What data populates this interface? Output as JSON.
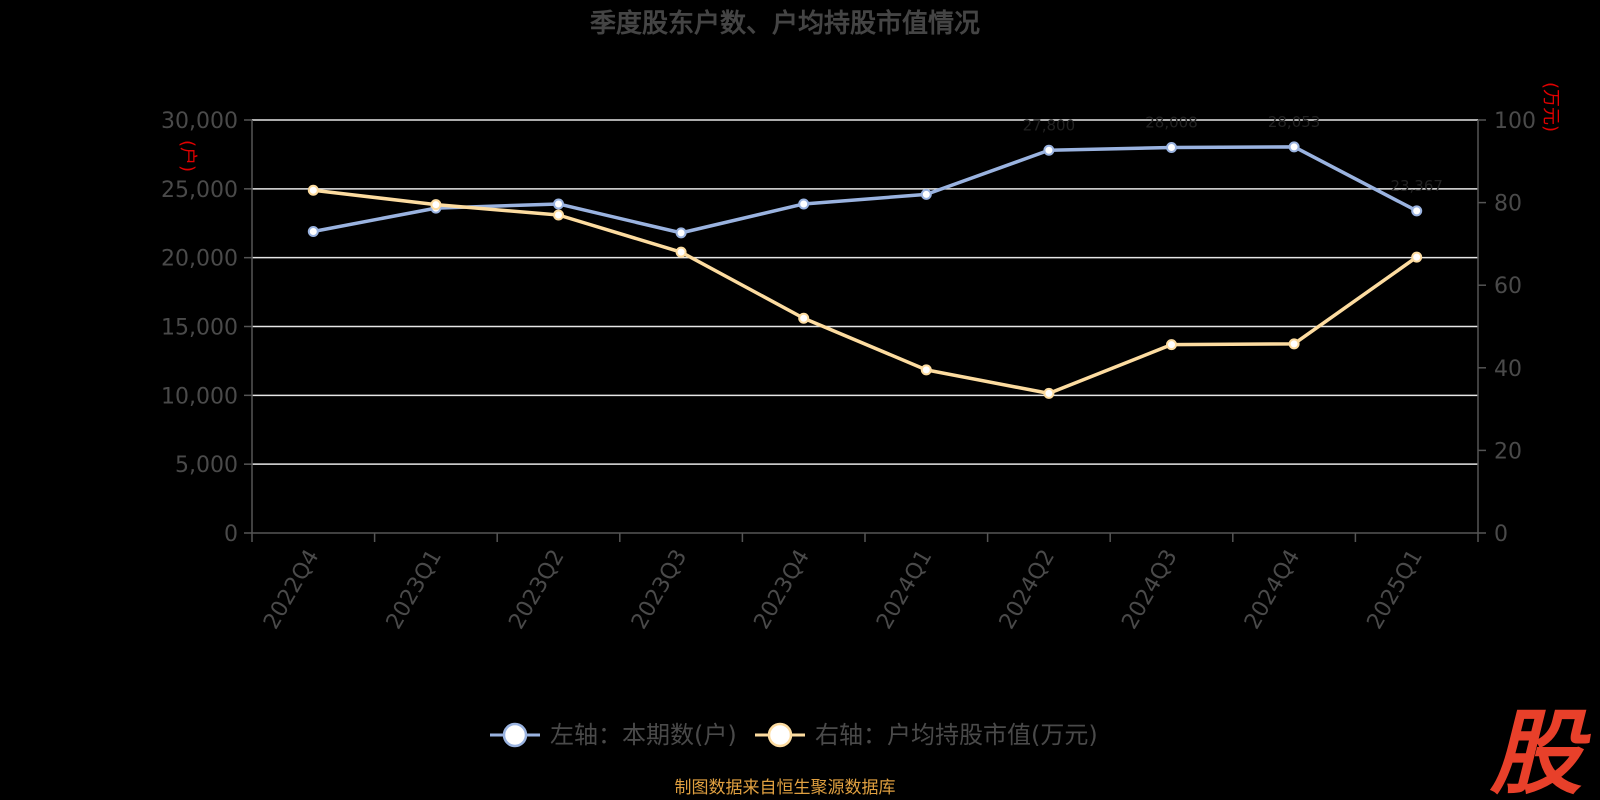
{
  "chart_data": {
    "type": "line",
    "title": "季度股东户数、户均持股市值情况",
    "categories": [
      "2022Q4",
      "2023Q1",
      "2023Q2",
      "2023Q3",
      "2023Q4",
      "2024Q1",
      "2024Q2",
      "2024Q3",
      "2024Q4",
      "2025Q1"
    ],
    "left_axis": {
      "unit": "(户)",
      "min": 0,
      "max": 30000,
      "ticks": [
        "0",
        "5,000",
        "10,000",
        "15,000",
        "20,000",
        "25,000",
        "30,000"
      ]
    },
    "right_axis": {
      "unit": "(万元)",
      "min": 0,
      "max": 100,
      "ticks": [
        "0",
        "20",
        "40",
        "60",
        "80",
        "100"
      ]
    },
    "series": [
      {
        "name": "左轴：本期数(户)",
        "axis": "left",
        "color": "#9ab3e0",
        "values": [
          21900,
          23600,
          23900,
          21800,
          23900,
          24600,
          27800,
          28000,
          28050,
          23400
        ]
      },
      {
        "name": "右轴：户均持股市值(万元)",
        "axis": "right",
        "color": "#fddca0",
        "values": [
          83,
          79.5,
          77,
          68,
          52,
          39.5,
          33.8,
          45.6,
          45.8,
          66.8
        ]
      }
    ],
    "data_labels": [
      "27,800",
      "28,008",
      "28,053",
      "23,367"
    ],
    "grid": true,
    "legend": "bottom"
  },
  "footer": {
    "source": "制图数据来自恒生聚源数据库",
    "logo": "股"
  }
}
